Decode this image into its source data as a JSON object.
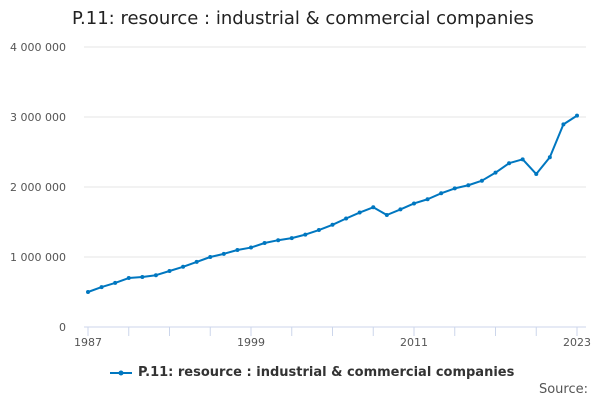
{
  "chart_data": {
    "type": "line",
    "title": "P.11: resource : industrial & commercial companies",
    "xlabel": "",
    "ylabel": "",
    "x": [
      1987,
      1988,
      1989,
      1990,
      1991,
      1992,
      1993,
      1994,
      1995,
      1996,
      1997,
      1998,
      1999,
      2000,
      2001,
      2002,
      2003,
      2004,
      2005,
      2006,
      2007,
      2008,
      2009,
      2010,
      2011,
      2012,
      2013,
      2014,
      2015,
      2016,
      2017,
      2018,
      2019,
      2020,
      2021,
      2022,
      2023
    ],
    "series": [
      {
        "name": "P.11: resource : industrial & commercial companies",
        "color": "#0077c0",
        "values": [
          500000,
          570000,
          630000,
          700000,
          715000,
          740000,
          800000,
          860000,
          930000,
          1000000,
          1045000,
          1100000,
          1135000,
          1200000,
          1240000,
          1270000,
          1320000,
          1385000,
          1460000,
          1550000,
          1635000,
          1710000,
          1600000,
          1680000,
          1765000,
          1825000,
          1910000,
          1980000,
          2025000,
          2090000,
          2205000,
          2340000,
          2395000,
          2185000,
          2425000,
          2895000,
          3020000
        ]
      }
    ],
    "ylim": [
      0,
      4000000
    ],
    "xlim": [
      1987,
      2023
    ],
    "yticks": [
      0,
      1000000,
      2000000,
      3000000,
      4000000
    ],
    "ytick_labels": [
      "0",
      "1 000 000",
      "2 000 000",
      "3 000 000",
      "4 000 000"
    ],
    "xtick_labels": [
      "1987",
      "1999",
      "2011",
      "2023"
    ],
    "grid": true,
    "legend": "bottom"
  },
  "source_label": "Source:"
}
